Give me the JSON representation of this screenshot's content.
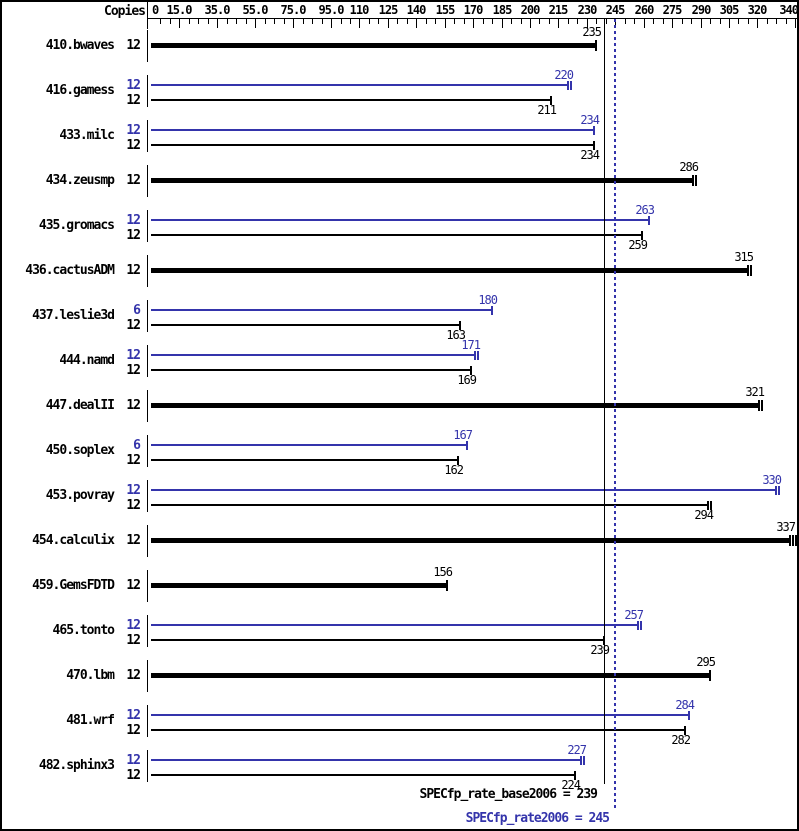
{
  "chart_data": {
    "type": "bar",
    "orientation": "horizontal",
    "copies_header": "Copies",
    "colors": {
      "peak": "#3434ab",
      "base": "#000000"
    },
    "axis": {
      "min": 0,
      "max": 342,
      "minor_tick_step": 5,
      "labels": [
        {
          "value": 0,
          "text": "0"
        },
        {
          "value": 15,
          "text": "15.0"
        },
        {
          "value": 35,
          "text": "35.0"
        },
        {
          "value": 55,
          "text": "55.0"
        },
        {
          "value": 75,
          "text": "75.0"
        },
        {
          "value": 95,
          "text": "95.0"
        },
        {
          "value": 110,
          "text": "110"
        },
        {
          "value": 125,
          "text": "125"
        },
        {
          "value": 140,
          "text": "140"
        },
        {
          "value": 155,
          "text": "155"
        },
        {
          "value": 170,
          "text": "170"
        },
        {
          "value": 185,
          "text": "185"
        },
        {
          "value": 200,
          "text": "200"
        },
        {
          "value": 215,
          "text": "215"
        },
        {
          "value": 230,
          "text": "230"
        },
        {
          "value": 245,
          "text": "245"
        },
        {
          "value": 260,
          "text": "260"
        },
        {
          "value": 275,
          "text": "275"
        },
        {
          "value": 290,
          "text": "290"
        },
        {
          "value": 305,
          "text": "305"
        },
        {
          "value": 320,
          "text": "320"
        },
        {
          "value": 340,
          "text": "340"
        }
      ]
    },
    "benchmarks": [
      {
        "name": "410.bwaves",
        "results": [
          {
            "kind": "single",
            "copies": "12",
            "value": 235,
            "marks": 1
          }
        ]
      },
      {
        "name": "416.gamess",
        "results": [
          {
            "kind": "peak",
            "copies": "12",
            "value": 220,
            "marks": 2
          },
          {
            "kind": "base",
            "copies": "12",
            "value": 211,
            "marks": 1
          }
        ]
      },
      {
        "name": "433.milc",
        "results": [
          {
            "kind": "peak",
            "copies": "12",
            "value": 234,
            "marks": 1
          },
          {
            "kind": "base",
            "copies": "12",
            "value": 234,
            "marks": 1
          }
        ]
      },
      {
        "name": "434.zeusmp",
        "results": [
          {
            "kind": "single",
            "copies": "12",
            "value": 286,
            "marks": 2
          }
        ]
      },
      {
        "name": "435.gromacs",
        "results": [
          {
            "kind": "peak",
            "copies": "12",
            "value": 263,
            "marks": 1
          },
          {
            "kind": "base",
            "copies": "12",
            "value": 259,
            "marks": 1
          }
        ]
      },
      {
        "name": "436.cactusADM",
        "results": [
          {
            "kind": "single",
            "copies": "12",
            "value": 315,
            "marks": 2
          }
        ]
      },
      {
        "name": "437.leslie3d",
        "results": [
          {
            "kind": "peak",
            "copies": "6",
            "value": 180,
            "marks": 1
          },
          {
            "kind": "base",
            "copies": "12",
            "value": 163,
            "marks": 1
          }
        ]
      },
      {
        "name": "444.namd",
        "results": [
          {
            "kind": "peak",
            "copies": "12",
            "value": 171,
            "marks": 2
          },
          {
            "kind": "base",
            "copies": "12",
            "value": 169,
            "marks": 1
          }
        ]
      },
      {
        "name": "447.dealII",
        "results": [
          {
            "kind": "single",
            "copies": "12",
            "value": 321,
            "marks": 2
          }
        ]
      },
      {
        "name": "450.soplex",
        "results": [
          {
            "kind": "peak",
            "copies": "6",
            "value": 167,
            "marks": 1
          },
          {
            "kind": "base",
            "copies": "12",
            "value": 162,
            "marks": 1
          }
        ]
      },
      {
        "name": "453.povray",
        "results": [
          {
            "kind": "peak",
            "copies": "12",
            "value": 330,
            "marks": 2
          },
          {
            "kind": "base",
            "copies": "12",
            "value": 294,
            "marks": 2
          }
        ]
      },
      {
        "name": "454.calculix",
        "results": [
          {
            "kind": "single",
            "copies": "12",
            "value": 337,
            "marks": 3
          }
        ]
      },
      {
        "name": "459.GemsFDTD",
        "results": [
          {
            "kind": "single",
            "copies": "12",
            "value": 156,
            "marks": 1
          }
        ]
      },
      {
        "name": "465.tonto",
        "results": [
          {
            "kind": "peak",
            "copies": "12",
            "value": 257,
            "marks": 2
          },
          {
            "kind": "base",
            "copies": "12",
            "value": 239,
            "marks": 1
          }
        ]
      },
      {
        "name": "470.lbm",
        "results": [
          {
            "kind": "single",
            "copies": "12",
            "value": 295,
            "marks": 1
          }
        ]
      },
      {
        "name": "481.wrf",
        "results": [
          {
            "kind": "peak",
            "copies": "12",
            "value": 284,
            "marks": 1
          },
          {
            "kind": "base",
            "copies": "12",
            "value": 282,
            "marks": 1
          }
        ]
      },
      {
        "name": "482.sphinx3",
        "results": [
          {
            "kind": "peak",
            "copies": "12",
            "value": 227,
            "marks": 2
          },
          {
            "kind": "base",
            "copies": "12",
            "value": 224,
            "marks": 1
          }
        ]
      }
    ],
    "references": {
      "base": {
        "value": 239,
        "label": "SPECfp_rate_base2006 = 239"
      },
      "peak": {
        "value": 245,
        "label": "SPECfp_rate2006 = 245"
      }
    }
  }
}
